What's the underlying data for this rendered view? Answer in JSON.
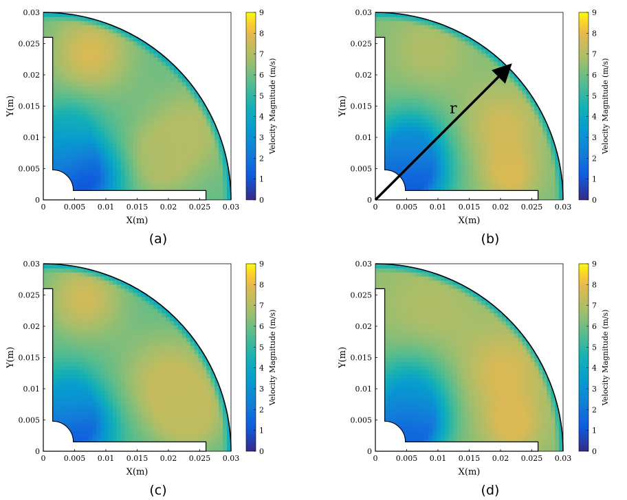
{
  "chart_data": [
    {
      "type": "heatmap",
      "panel": "(a)",
      "title": "",
      "xlabel": "X(m)",
      "ylabel": "Y(m)",
      "xlim": [
        0,
        0.03
      ],
      "ylim": [
        0,
        0.03
      ],
      "x_ticks": [
        "0",
        "0.005",
        "0.01",
        "0.015",
        "0.02",
        "0.025",
        "0.03"
      ],
      "y_ticks": [
        "0",
        "0.005",
        "0.01",
        "0.015",
        "0.02",
        "0.025",
        "0.03"
      ],
      "colorbar": {
        "label": "Velocity Magnitude (m/s)",
        "range": [
          0,
          9
        ],
        "ticks": [
          "0",
          "1",
          "2",
          "3",
          "4",
          "5",
          "6",
          "7",
          "8",
          "9"
        ]
      },
      "annotation": null,
      "blobs": [
        {
          "x": 0.0065,
          "y": 0.0035,
          "v": 0.8,
          "s": 0.004
        },
        {
          "x": 0.0025,
          "y": 0.0075,
          "v": 3.0,
          "s": 0.003
        },
        {
          "x": 0.0075,
          "y": 0.0235,
          "v": 7.8,
          "s": 0.0045
        },
        {
          "x": 0.0235,
          "y": 0.0115,
          "v": 7.0,
          "s": 0.005
        },
        {
          "x": 0.018,
          "y": 0.006,
          "v": 7.0,
          "s": 0.004
        },
        {
          "x": 0.0045,
          "y": 0.012,
          "v": 4.5,
          "s": 0.0035
        }
      ],
      "base_value": 5.8
    },
    {
      "type": "heatmap",
      "panel": "(b)",
      "title": "",
      "xlabel": "X(m)",
      "ylabel": "Y(m)",
      "xlim": [
        0,
        0.03
      ],
      "ylim": [
        0,
        0.03
      ],
      "x_ticks": [
        "0",
        "0.005",
        "0.01",
        "0.015",
        "0.02",
        "0.025",
        "0.03"
      ],
      "y_ticks": [
        "0",
        "0.005",
        "0.01",
        "0.015",
        "0.02",
        "0.025",
        "0.03"
      ],
      "colorbar": {
        "label": "Velocity Magnitude (m/s)",
        "range": [
          0,
          9
        ],
        "ticks": [
          "0",
          "1",
          "2",
          "3",
          "4",
          "5",
          "6",
          "7",
          "8",
          "9"
        ]
      },
      "annotation": {
        "text": "r",
        "from": [
          0,
          0
        ],
        "to": [
          0.0213,
          0.0213
        ]
      },
      "blobs": [
        {
          "x": 0.0055,
          "y": 0.0035,
          "v": 0.8,
          "s": 0.0038
        },
        {
          "x": 0.0055,
          "y": 0.009,
          "v": 3.2,
          "s": 0.004
        },
        {
          "x": 0.0085,
          "y": 0.024,
          "v": 7.0,
          "s": 0.0045
        },
        {
          "x": 0.0205,
          "y": 0.012,
          "v": 7.6,
          "s": 0.0045
        },
        {
          "x": 0.0215,
          "y": 0.004,
          "v": 7.8,
          "s": 0.003
        }
      ],
      "base_value": 6.2
    },
    {
      "type": "heatmap",
      "panel": "(c)",
      "title": "",
      "xlabel": "X(m)",
      "ylabel": "Y(m)",
      "xlim": [
        0,
        0.03
      ],
      "ylim": [
        0,
        0.03
      ],
      "x_ticks": [
        "0",
        "0.005",
        "0.01",
        "0.015",
        "0.02",
        "0.025",
        "0.03"
      ],
      "y_ticks": [
        "0",
        "0.005",
        "0.01",
        "0.015",
        "0.02",
        "0.025",
        "0.03"
      ],
      "colorbar": {
        "label": "Velocity Magnitude (m/s)",
        "range": [
          0,
          9
        ],
        "ticks": [
          "0",
          "1",
          "2",
          "3",
          "4",
          "5",
          "6",
          "7",
          "8",
          "9"
        ]
      },
      "annotation": null,
      "blobs": [
        {
          "x": 0.0055,
          "y": 0.0035,
          "v": 1.0,
          "s": 0.0038
        },
        {
          "x": 0.004,
          "y": 0.009,
          "v": 3.8,
          "s": 0.0035
        },
        {
          "x": 0.0065,
          "y": 0.0245,
          "v": 7.6,
          "s": 0.0045
        },
        {
          "x": 0.02,
          "y": 0.0115,
          "v": 7.4,
          "s": 0.0055
        },
        {
          "x": 0.0235,
          "y": 0.0055,
          "v": 7.2,
          "s": 0.004
        }
      ],
      "base_value": 5.6
    },
    {
      "type": "heatmap",
      "panel": "(d)",
      "title": "",
      "xlabel": "X(m)",
      "ylabel": "Y(m)",
      "xlim": [
        0,
        0.03
      ],
      "ylim": [
        0,
        0.03
      ],
      "x_ticks": [
        "0",
        "0.005",
        "0.01",
        "0.015",
        "0.02",
        "0.025",
        "0.03"
      ],
      "y_ticks": [
        "0",
        "0.005",
        "0.01",
        "0.015",
        "0.02",
        "0.025",
        "0.03"
      ],
      "colorbar": {
        "label": "Velocity Magnitude (m/s)",
        "range": [
          0,
          9
        ],
        "ticks": [
          "0",
          "1",
          "2",
          "3",
          "4",
          "5",
          "6",
          "7",
          "8",
          "9"
        ]
      },
      "annotation": null,
      "blobs": [
        {
          "x": 0.0055,
          "y": 0.0035,
          "v": 0.8,
          "s": 0.0035
        },
        {
          "x": 0.0055,
          "y": 0.009,
          "v": 3.5,
          "s": 0.0045
        },
        {
          "x": 0.0085,
          "y": 0.023,
          "v": 7.0,
          "s": 0.005
        },
        {
          "x": 0.0205,
          "y": 0.0125,
          "v": 7.8,
          "s": 0.005
        },
        {
          "x": 0.022,
          "y": 0.004,
          "v": 7.8,
          "s": 0.003
        }
      ],
      "base_value": 6.4
    }
  ]
}
